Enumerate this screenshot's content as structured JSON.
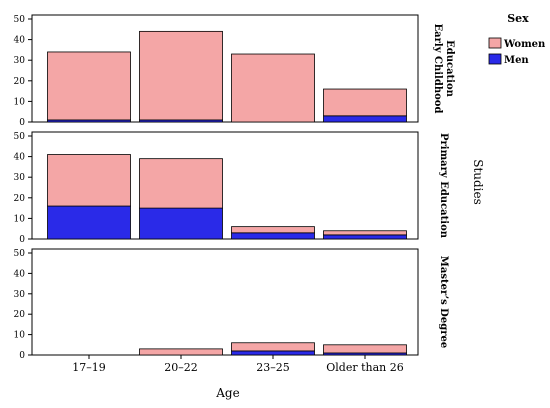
{
  "chart_data": {
    "type": "bar",
    "stacked": true,
    "categories": [
      "17–19",
      "20–22",
      "23–25",
      "Older than 26"
    ],
    "xlabel": "Age",
    "ylabel": "",
    "ylim": [
      0,
      50
    ],
    "yticks": [
      0,
      10,
      20,
      30,
      40,
      50
    ],
    "facet_title": "Studies",
    "legend": {
      "title": "Sex",
      "placement": "top-right",
      "items": [
        {
          "name": "Women",
          "color": "#f4a6a6"
        },
        {
          "name": "Men",
          "color": "#2a2ae8"
        }
      ]
    },
    "panels": [
      {
        "label": "Early Childhood Education",
        "label_lines": [
          "Early Childhood",
          "Education"
        ],
        "series": [
          {
            "name": "Men",
            "values": [
              1,
              1,
              0,
              3
            ]
          },
          {
            "name": "Women",
            "values": [
              33,
              43,
              33,
              13
            ]
          }
        ]
      },
      {
        "label": "Primary Education",
        "label_lines": [
          "Primary Education"
        ],
        "series": [
          {
            "name": "Men",
            "values": [
              16,
              15,
              3,
              2
            ]
          },
          {
            "name": "Women",
            "values": [
              25,
              24,
              3,
              2
            ]
          }
        ]
      },
      {
        "label": "Master’s Degree",
        "label_lines": [
          "Master’s Degree"
        ],
        "series": [
          {
            "name": "Men",
            "values": [
              0,
              0,
              2,
              1
            ]
          },
          {
            "name": "Women",
            "values": [
              0,
              3,
              4,
              4
            ]
          }
        ]
      }
    ]
  }
}
